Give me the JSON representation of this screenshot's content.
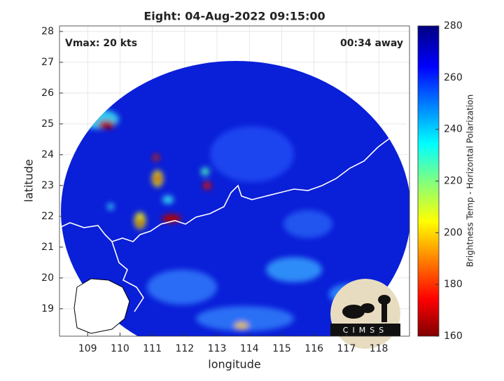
{
  "map": {
    "title": "Eight: 04-Aug-2022 09:15:00",
    "annotations": [
      "Vmax: 20 kts",
      "00:34 away"
    ],
    "xlabel": "longitude",
    "ylabel": "latitude",
    "xlim": [
      108.13,
      118.95
    ],
    "ylim": [
      18.11,
      28.18
    ],
    "xticks": [
      109,
      110,
      111,
      112,
      113,
      114,
      115,
      116,
      117,
      118
    ],
    "yticks": [
      19,
      20,
      21,
      22,
      23,
      24,
      25,
      26,
      27,
      28
    ],
    "grid": true,
    "colorbar": {
      "label": "Brightness Temp - Horizontal Polarization",
      "lim": [
        160,
        280
      ],
      "ticks": [
        160,
        180,
        200,
        220,
        240,
        260,
        280
      ]
    },
    "logo": "CIMSS"
  }
}
